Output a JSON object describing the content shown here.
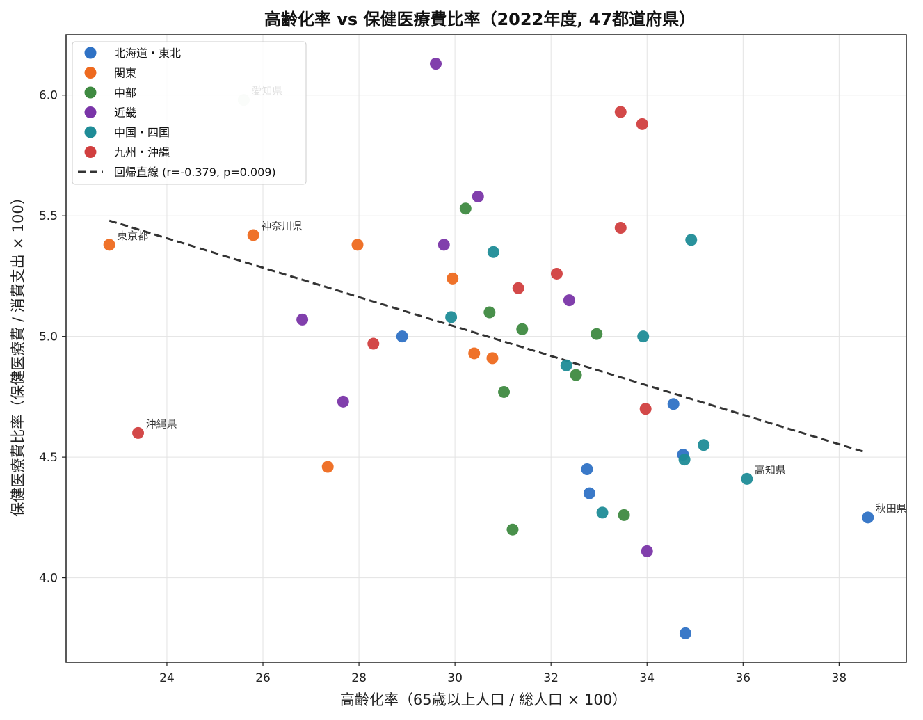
{
  "chart_data": {
    "type": "scatter",
    "title": "高齢化率 vs 保健医療費比率（2022年度, 47都道府県）",
    "xlabel": "高齢化率（65歳以上人口 / 総人口 × 100）",
    "ylabel": "保健医療費比率（保健医療費 / 消費支出 × 100）",
    "xlim": [
      21.9,
      39.4
    ],
    "ylim": [
      3.65,
      6.25
    ],
    "xticks": [
      24,
      26,
      28,
      30,
      32,
      34,
      36,
      38
    ],
    "yticks": [
      4.0,
      4.5,
      5.0,
      5.5,
      6.0
    ],
    "xtick_labels": [
      "24",
      "26",
      "28",
      "30",
      "32",
      "34",
      "36",
      "38"
    ],
    "ytick_labels": [
      "4.0",
      "4.5",
      "5.0",
      "5.5",
      "6.0"
    ],
    "grid": true,
    "legend_position": "top-left",
    "series": [
      {
        "name": "北海道・東北",
        "color": "#2f72c5",
        "points": [
          [
            28.9,
            5.0
          ],
          [
            34.8,
            3.77
          ],
          [
            32.75,
            4.45
          ],
          [
            32.8,
            4.35
          ],
          [
            34.55,
            4.72
          ],
          [
            34.75,
            4.51
          ],
          [
            38.6,
            4.25
          ]
        ]
      },
      {
        "name": "関東",
        "color": "#ee6a1f",
        "points": [
          [
            22.8,
            5.38
          ],
          [
            25.8,
            5.42
          ],
          [
            27.97,
            5.38
          ],
          [
            29.95,
            5.24
          ],
          [
            30.4,
            4.93
          ],
          [
            30.78,
            4.91
          ],
          [
            27.35,
            4.46
          ]
        ]
      },
      {
        "name": "中部",
        "color": "#3f8a41",
        "points": [
          [
            30.22,
            5.53
          ],
          [
            30.72,
            5.1
          ],
          [
            31.4,
            5.03
          ],
          [
            32.95,
            5.01
          ],
          [
            31.02,
            4.77
          ],
          [
            32.52,
            4.84
          ],
          [
            33.52,
            4.26
          ],
          [
            31.2,
            4.2
          ],
          [
            25.6,
            5.98
          ]
        ]
      },
      {
        "name": "近畿",
        "color": "#7a35a8",
        "points": [
          [
            29.6,
            6.13
          ],
          [
            30.48,
            5.58
          ],
          [
            29.77,
            5.38
          ],
          [
            32.38,
            5.15
          ],
          [
            26.82,
            5.07
          ],
          [
            27.67,
            4.73
          ],
          [
            34.0,
            4.11
          ]
        ]
      },
      {
        "name": "中国・四国",
        "color": "#1f8c97",
        "points": [
          [
            30.8,
            5.35
          ],
          [
            29.92,
            5.08
          ],
          [
            33.92,
            5.0
          ],
          [
            34.92,
            5.4
          ],
          [
            32.32,
            4.88
          ],
          [
            34.78,
            4.49
          ],
          [
            35.18,
            4.55
          ],
          [
            36.08,
            4.41
          ],
          [
            33.07,
            4.27
          ]
        ]
      },
      {
        "name": "九州・沖縄",
        "color": "#d13f3f",
        "points": [
          [
            33.45,
            5.93
          ],
          [
            33.9,
            5.88
          ],
          [
            33.45,
            5.45
          ],
          [
            32.12,
            5.26
          ],
          [
            31.32,
            5.2
          ],
          [
            28.3,
            4.97
          ],
          [
            33.97,
            4.7
          ],
          [
            23.4,
            4.6
          ]
        ]
      }
    ],
    "regression": {
      "name": "回帰直線 (r=-0.379, p=0.009)",
      "color": "#333333",
      "points": [
        [
          22.8,
          5.48
        ],
        [
          38.55,
          4.52
        ]
      ]
    },
    "annotations": [
      {
        "text": "愛知県",
        "x": 25.6,
        "y": 5.98,
        "muted": true
      },
      {
        "text": "東京都",
        "x": 22.8,
        "y": 5.38,
        "muted": false
      },
      {
        "text": "神奈川県",
        "x": 25.8,
        "y": 5.42,
        "muted": false
      },
      {
        "text": "沖縄県",
        "x": 23.4,
        "y": 4.6,
        "muted": false
      },
      {
        "text": "高知県",
        "x": 36.08,
        "y": 4.41,
        "muted": false
      },
      {
        "text": "秋田県",
        "x": 38.6,
        "y": 4.25,
        "muted": false
      }
    ]
  }
}
